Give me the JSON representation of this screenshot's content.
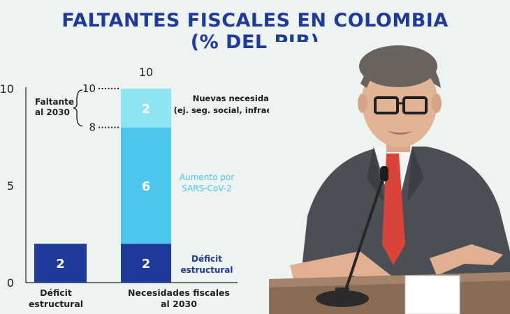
{
  "header": {
    "title_line1": "FALTANTES FISCALES EN COLOMBIA",
    "title_line2": "(% DEL PIB)"
  },
  "chart_data": {
    "type": "bar",
    "stacked": true,
    "categories": [
      "Déficit estructural",
      "Necesidades fiscales al 2030"
    ],
    "category_labels": [
      [
        "Déficit",
        "estructural"
      ],
      [
        "Necesidades fiscales",
        "al 2030"
      ]
    ],
    "series": [
      {
        "name": "Déficit estructural",
        "name_lines": [
          "Déficit",
          "estructural"
        ],
        "values": [
          2,
          2
        ],
        "color": "#1e3a9a",
        "label_color": "#1e3a9a"
      },
      {
        "name": "Aumento por SARS-CoV-2",
        "name_lines": [
          "Aumento por",
          "SARS-CoV-2"
        ],
        "values": [
          0,
          6
        ],
        "color": "#4cc6ef",
        "label_color": "#4cc6ef"
      },
      {
        "name": "Nuevas necesidades fiscales (ej. seg. social, infraestructura, etc.)",
        "name_lines": [
          "Nuevas necesidades fiscales",
          "(ej. seg. social, infraestructura, etc.)"
        ],
        "values": [
          0,
          2
        ],
        "color": "#8ee4f3",
        "label_color": "#1a1a1a"
      }
    ],
    "data_labels": [
      [
        "2",
        "2"
      ],
      [
        "",
        "6"
      ],
      [
        "",
        "2"
      ]
    ],
    "total_label": "10",
    "ylim": [
      0,
      10
    ],
    "yticks": [
      "0",
      "5",
      "10"
    ],
    "annotation": {
      "label_lines": [
        "Faltante",
        "al 2030"
      ],
      "upper": "10",
      "lower": "8",
      "upper_value": 10,
      "lower_value": 8
    },
    "grid": false,
    "legend": "inline-right"
  }
}
